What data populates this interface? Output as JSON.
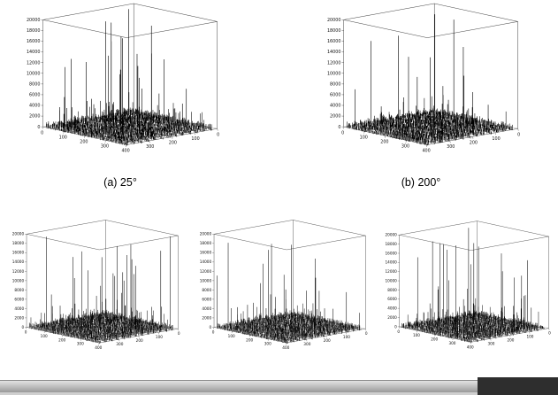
{
  "figure": {
    "description": "Five 3D spike plots of spectral peaks versus two 0-400 axes, amplitude up to 20000"
  },
  "chart_data": [
    {
      "id": "a",
      "type": "scatter",
      "plot_style": "3d-spike",
      "caption": "(a)  25°",
      "xlim": [
        0,
        400
      ],
      "ylim": [
        0,
        400
      ],
      "zlim": [
        0,
        20000
      ],
      "x_ticks": [
        0,
        100,
        200,
        300,
        400
      ],
      "y_ticks": [
        300,
        200,
        100,
        0
      ],
      "z_ticks": [
        0,
        2000,
        4000,
        6000,
        8000,
        10000,
        12000,
        14000,
        16000,
        18000,
        20000
      ],
      "grid": false,
      "seed": 7
    },
    {
      "id": "b",
      "type": "scatter",
      "plot_style": "3d-spike",
      "caption": "(b) 200°",
      "xlim": [
        0,
        400
      ],
      "ylim": [
        0,
        400
      ],
      "zlim": [
        0,
        20000
      ],
      "x_ticks": [
        0,
        100,
        200,
        300,
        400
      ],
      "y_ticks": [
        300,
        200,
        100,
        0
      ],
      "z_ticks": [
        0,
        2000,
        4000,
        6000,
        8000,
        10000,
        12000,
        14000,
        16000,
        18000,
        20000
      ],
      "grid": false,
      "seed": 19
    },
    {
      "id": "c",
      "type": "scatter",
      "plot_style": "3d-spike",
      "caption": "",
      "xlim": [
        0,
        400
      ],
      "ylim": [
        0,
        400
      ],
      "zlim": [
        0,
        20000
      ],
      "x_ticks": [
        0,
        100,
        200,
        300,
        400
      ],
      "y_ticks": [
        300,
        200,
        100,
        0
      ],
      "z_ticks": [
        0,
        2000,
        4000,
        6000,
        8000,
        10000,
        12000,
        14000,
        16000,
        18000,
        20000
      ],
      "grid": false,
      "seed": 31
    },
    {
      "id": "d",
      "type": "scatter",
      "plot_style": "3d-spike",
      "caption": "",
      "xlim": [
        0,
        400
      ],
      "ylim": [
        0,
        400
      ],
      "zlim": [
        0,
        20000
      ],
      "x_ticks": [
        0,
        100,
        200,
        300,
        400
      ],
      "y_ticks": [
        300,
        200,
        100,
        0
      ],
      "z_ticks": [
        0,
        2000,
        4000,
        6000,
        8000,
        10000,
        12000,
        14000,
        16000,
        18000,
        20000
      ],
      "grid": false,
      "seed": 43
    },
    {
      "id": "e",
      "type": "scatter",
      "plot_style": "3d-spike",
      "caption": "",
      "xlim": [
        0,
        400
      ],
      "ylim": [
        0,
        400
      ],
      "zlim": [
        0,
        20000
      ],
      "x_ticks": [
        0,
        100,
        200,
        300,
        400
      ],
      "y_ticks": [
        300,
        200,
        100,
        0
      ],
      "z_ticks": [
        0,
        2000,
        4000,
        6000,
        8000,
        10000,
        12000,
        14000,
        16000,
        18000,
        20000
      ],
      "grid": false,
      "seed": 57
    }
  ],
  "footer": {
    "bar_top": "#e3e3e3",
    "bar_bottom": "#9a9a9a",
    "dark_segment": "#2e2e2e",
    "edge_line": "#cfcfcf"
  }
}
